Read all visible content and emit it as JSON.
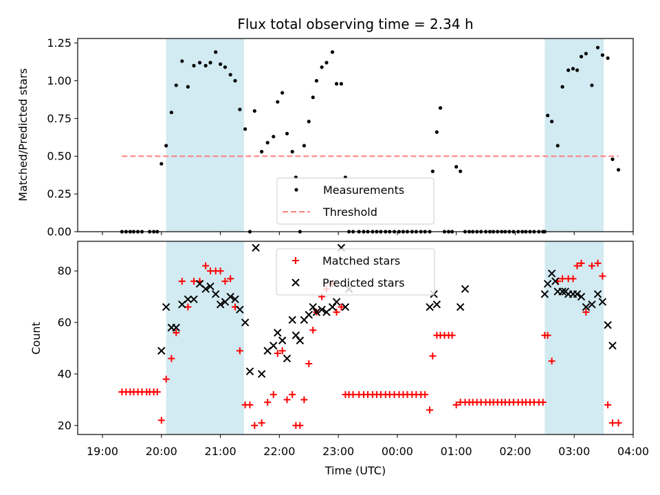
{
  "title": "Flux total observing time = 2.34 h",
  "colors": {
    "measurement": "#000000",
    "threshold": "#ff7f7f",
    "matched": "#ff0000",
    "predicted": "#000000",
    "shade": "#add8e6"
  },
  "chart_data": [
    {
      "type": "scatter",
      "ylabel": "Matched/Predicted stars",
      "xlabel": "",
      "xlim": [
        -0.42,
        9.0
      ],
      "ylim": [
        0,
        1.28
      ],
      "yticks": [
        "0.00",
        "0.25",
        "0.50",
        "0.75",
        "1.00",
        "1.25"
      ],
      "ytick_values": [
        0,
        0.25,
        0.5,
        0.75,
        1.0,
        1.25
      ],
      "grid": false,
      "legend_position": "bottom-center",
      "legend": [
        "Measurements",
        "Threshold"
      ],
      "shaded_regions": [
        [
          1.08,
          2.4
        ],
        [
          7.5,
          8.5
        ]
      ],
      "threshold": {
        "name": "Threshold",
        "value": 0.5,
        "x_range": [
          0.33,
          8.75
        ]
      },
      "series": [
        {
          "name": "Measurements",
          "marker": "dot",
          "x": [
            0.33,
            0.4,
            0.47,
            0.53,
            0.6,
            0.67,
            0.8,
            0.87,
            0.93,
            1.0,
            1.08,
            1.17,
            1.25,
            1.35,
            1.45,
            1.55,
            1.65,
            1.75,
            1.83,
            1.92,
            2.0,
            2.08,
            2.17,
            2.25,
            2.33,
            2.42,
            2.5,
            2.58,
            2.7,
            2.8,
            2.9,
            2.97,
            3.05,
            3.13,
            3.22,
            3.28,
            3.35,
            3.42,
            3.5,
            3.57,
            3.63,
            3.72,
            3.8,
            3.9,
            3.97,
            4.05,
            4.12,
            4.18,
            4.25,
            4.35,
            4.43,
            4.5,
            4.58,
            4.65,
            4.72,
            4.8,
            4.87,
            4.95,
            5.03,
            5.1,
            5.17,
            5.25,
            5.32,
            5.4,
            5.47,
            5.55,
            5.6,
            5.67,
            5.73,
            5.8,
            5.87,
            5.93,
            6.0,
            6.07,
            6.15,
            6.22,
            6.28,
            6.35,
            6.42,
            6.5,
            6.57,
            6.63,
            6.7,
            6.77,
            6.83,
            6.9,
            6.97,
            7.05,
            7.12,
            7.18,
            7.25,
            7.32,
            7.4,
            7.47,
            7.5,
            7.55,
            7.62,
            7.72,
            7.8,
            7.9,
            7.98,
            8.05,
            8.12,
            8.2,
            8.3,
            8.4,
            8.48,
            8.57,
            8.65,
            8.75
          ],
          "y": [
            0,
            0,
            0,
            0,
            0,
            0,
            0,
            0,
            0,
            0.45,
            0.57,
            0.79,
            0.97,
            1.13,
            0.96,
            1.1,
            1.12,
            1.1,
            1.12,
            1.19,
            1.11,
            1.09,
            1.04,
            1.0,
            0.81,
            0.68,
            0,
            0.8,
            0.53,
            0.59,
            0.63,
            0.86,
            0.92,
            0.65,
            0.53,
            0.36,
            0,
            0.57,
            0.73,
            0.89,
            1.0,
            1.09,
            1.12,
            1.19,
            0.98,
            0.98,
            0.36,
            0,
            0,
            0,
            0,
            0,
            0,
            0,
            0,
            0,
            0,
            0,
            0,
            0,
            0,
            0,
            0,
            0,
            0,
            0,
            0.4,
            0.66,
            0.82,
            0,
            0,
            0,
            0.43,
            0.4,
            0,
            0,
            0,
            0,
            0,
            0,
            0,
            0,
            0,
            0,
            0,
            0,
            0,
            0,
            0,
            0,
            0,
            0,
            0,
            0,
            0,
            0.77,
            0.73,
            0.57,
            0.96,
            1.07,
            1.08,
            1.07,
            1.16,
            1.18,
            0.97,
            1.22,
            1.17,
            1.15,
            0.48,
            0.41
          ]
        }
      ]
    },
    {
      "type": "scatter",
      "ylabel": "Count",
      "xlabel": "Time (UTC)",
      "xlim": [
        -0.42,
        9.0
      ],
      "ylim": [
        16.5,
        91.5
      ],
      "yticks": [
        "20",
        "40",
        "60",
        "80"
      ],
      "ytick_values": [
        20,
        40,
        60,
        80
      ],
      "xtick_values": [
        0,
        1,
        2,
        3,
        4,
        5,
        6,
        7,
        8,
        9
      ],
      "xticks": [
        "19:00",
        "20:00",
        "21:00",
        "22:00",
        "23:00",
        "00:00",
        "01:00",
        "02:00",
        "03:00",
        "04:00"
      ],
      "grid": false,
      "legend_position": "top-center",
      "legend": [
        "Matched stars",
        "Predicted stars"
      ],
      "shaded_regions": [
        [
          1.08,
          2.4
        ],
        [
          7.5,
          8.5
        ]
      ],
      "series": [
        {
          "name": "Matched stars",
          "marker": "plus",
          "x": [
            0.33,
            0.4,
            0.47,
            0.53,
            0.6,
            0.67,
            0.75,
            0.8,
            0.87,
            0.93,
            1.0,
            1.08,
            1.17,
            1.25,
            1.35,
            1.45,
            1.55,
            1.65,
            1.75,
            1.83,
            1.92,
            2.0,
            2.08,
            2.17,
            2.25,
            2.33,
            2.42,
            2.5,
            2.58,
            2.7,
            2.8,
            2.9,
            2.97,
            3.05,
            3.13,
            3.22,
            3.28,
            3.35,
            3.42,
            3.5,
            3.57,
            3.63,
            3.72,
            3.8,
            3.9,
            3.97,
            4.05,
            4.12,
            4.18,
            4.25,
            4.35,
            4.43,
            4.5,
            4.58,
            4.65,
            4.72,
            4.8,
            4.87,
            4.95,
            5.03,
            5.1,
            5.17,
            5.25,
            5.32,
            5.4,
            5.47,
            5.55,
            5.6,
            5.67,
            5.73,
            5.8,
            5.87,
            5.93,
            6.0,
            6.07,
            6.15,
            6.22,
            6.28,
            6.35,
            6.42,
            6.5,
            6.57,
            6.63,
            6.7,
            6.77,
            6.83,
            6.9,
            6.97,
            7.05,
            7.12,
            7.18,
            7.25,
            7.32,
            7.4,
            7.47,
            7.5,
            7.55,
            7.62,
            7.72,
            7.8,
            7.9,
            7.98,
            8.05,
            8.12,
            8.2,
            8.3,
            8.4,
            8.48,
            8.57,
            8.65,
            8.75
          ],
          "y": [
            33,
            33,
            33,
            33,
            33,
            33,
            33,
            33,
            33,
            33,
            22,
            38,
            46,
            56,
            76,
            66,
            76,
            76,
            82,
            80,
            80,
            80,
            76,
            77,
            66,
            49,
            28,
            28,
            20,
            21,
            29,
            32,
            48,
            49,
            30,
            32,
            20,
            20,
            30,
            44,
            57,
            64,
            70,
            73,
            75,
            64,
            66,
            32,
            32,
            32,
            32,
            32,
            32,
            32,
            32,
            32,
            32,
            32,
            32,
            32,
            32,
            32,
            32,
            32,
            32,
            32,
            26,
            47,
            55,
            55,
            55,
            55,
            55,
            28,
            29,
            29,
            29,
            29,
            29,
            29,
            29,
            29,
            29,
            29,
            29,
            29,
            29,
            29,
            29,
            29,
            29,
            29,
            29,
            29,
            29,
            55,
            55,
            45,
            76,
            77,
            77,
            77,
            82,
            83,
            64,
            82,
            83,
            78,
            28,
            21,
            21
          ]
        },
        {
          "name": "Predicted stars",
          "marker": "x",
          "x": [
            1.0,
            1.08,
            1.17,
            1.25,
            1.35,
            1.45,
            1.55,
            1.65,
            1.75,
            1.83,
            1.92,
            2.0,
            2.08,
            2.17,
            2.25,
            2.33,
            2.42,
            2.5,
            2.6,
            2.7,
            2.8,
            2.9,
            2.97,
            3.05,
            3.13,
            3.22,
            3.28,
            3.35,
            3.42,
            3.5,
            3.57,
            3.63,
            3.72,
            3.8,
            3.9,
            3.97,
            4.05,
            4.12,
            4.18,
            5.55,
            5.62,
            5.67,
            6.07,
            6.15,
            7.5,
            7.55,
            7.62,
            7.68,
            7.72,
            7.8,
            7.85,
            7.9,
            7.98,
            8.05,
            8.12,
            8.2,
            8.3,
            8.4,
            8.48,
            8.57,
            8.65
          ],
          "y": [
            49,
            66,
            58,
            58,
            67,
            69,
            69,
            75,
            73,
            74,
            71,
            67,
            68,
            70,
            69,
            65,
            60,
            41,
            89,
            40,
            49,
            51,
            56,
            53,
            46,
            61,
            55,
            53,
            61,
            63,
            66,
            64,
            65,
            64,
            66,
            68,
            89,
            66,
            73,
            66,
            71,
            67,
            66,
            73,
            71,
            75,
            79,
            76,
            72,
            72,
            72,
            71,
            71,
            71,
            70,
            66,
            67,
            71,
            68,
            59,
            51
          ]
        }
      ]
    }
  ]
}
